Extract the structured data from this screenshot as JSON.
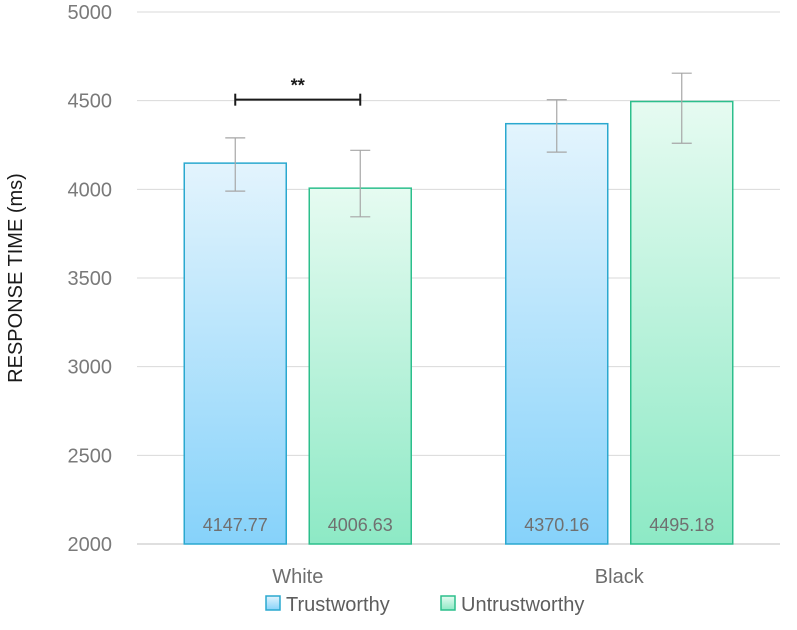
{
  "chart_data": {
    "type": "bar",
    "title": "",
    "xlabel": "",
    "ylabel": "RESPONSE TIME (ms)",
    "ylim": [
      2000,
      5000
    ],
    "yticks": [
      2000,
      2500,
      3000,
      3500,
      4000,
      4500,
      5000
    ],
    "grid": true,
    "legend_position": "bottom",
    "categories": [
      "White",
      "Black"
    ],
    "series": [
      {
        "name": "Trustworthy",
        "values": [
          4147.77,
          4370.16
        ],
        "labels": [
          "4147.77",
          "4370.16"
        ],
        "error_low": [
          3990,
          4210
        ],
        "error_high": [
          4290,
          4505
        ],
        "fill_top": "#e3f4fd",
        "fill_bottom": "#86d2fa",
        "stroke": "#2aa8cf"
      },
      {
        "name": "Untrustworthy",
        "values": [
          4006.63,
          4495.18
        ],
        "labels": [
          "4006.63",
          "4495.18"
        ],
        "error_low": [
          3845,
          4260
        ],
        "error_high": [
          4220,
          4655
        ],
        "fill_top": "#e6fbf1",
        "fill_bottom": "#8de9c5",
        "stroke": "#2cbf8c"
      }
    ],
    "annotations": [
      {
        "text": "**",
        "category": "White",
        "bracket_value": 4500
      }
    ]
  }
}
